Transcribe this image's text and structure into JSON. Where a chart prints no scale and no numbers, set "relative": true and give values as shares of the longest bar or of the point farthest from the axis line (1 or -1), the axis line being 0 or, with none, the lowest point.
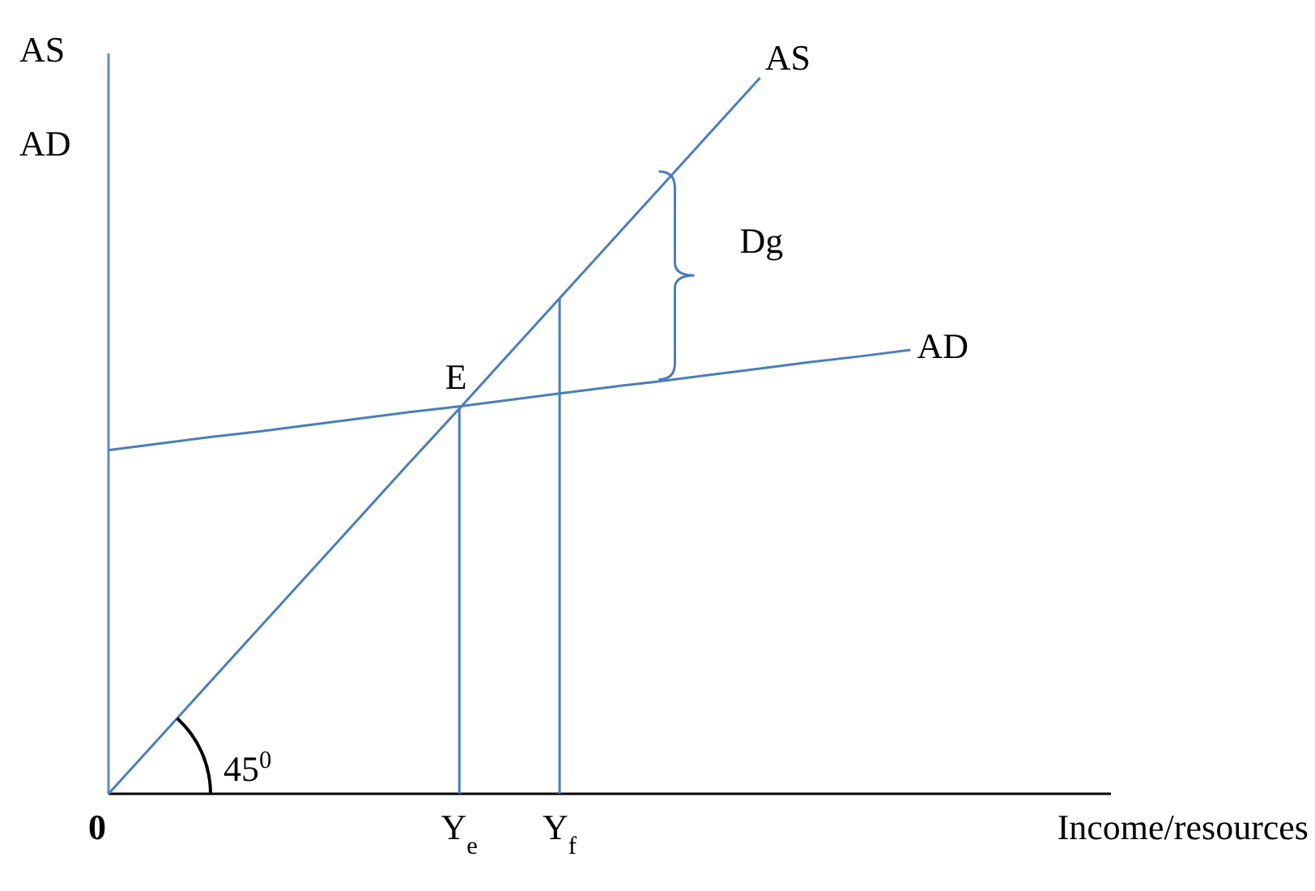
{
  "chart_data": {
    "type": "line",
    "relative": true,
    "xlabel": "Income/resources",
    "ylabel": "AS AD",
    "categories": [
      "0",
      null,
      null,
      null,
      null,
      null,
      null,
      "Y$_{e}$",
      null,
      "Y$_{f}$",
      null,
      null,
      null,
      null,
      null,
      null,
      null,
      null,
      null,
      null,
      null
    ],
    "series": [
      {
        "name": "AS",
        "color": "#4a7ebb",
        "values": [
          0,
          0.077,
          0.154,
          0.231,
          0.308,
          0.385,
          0.462,
          0.538,
          0.615,
          0.692,
          0.769,
          0.846,
          0.923,
          1,
          null,
          null,
          null,
          null,
          null,
          null,
          null
        ]
      },
      {
        "name": "AD",
        "color": "#4a7ebb",
        "values": [
          0.48,
          0.489,
          0.498,
          0.506,
          0.515,
          0.524,
          0.533,
          0.541,
          0.55,
          0.559,
          0.568,
          0.576,
          0.585,
          0.594,
          0.603,
          0.611,
          0.62,
          null,
          null,
          null,
          null
        ]
      },
      {
        "color": "#4a7ebb",
        "x": [
          "Y$_{e}$",
          "Y$_{e}$"
        ],
        "values": [
          0,
          0.538
        ]
      },
      {
        "color": "#4a7ebb",
        "x": [
          "Y$_{f}$",
          "Y$_{f}$"
        ],
        "values": [
          0,
          0.692
        ]
      }
    ],
    "annotations": [
      {
        "text": "E",
        "x": "Y$_{e}$",
        "y": 0.538
      },
      "Dg",
      "45$^{0}$"
    ],
    "legend": false,
    "grid": false,
    "marker": "none",
    "line_style": "solid"
  }
}
